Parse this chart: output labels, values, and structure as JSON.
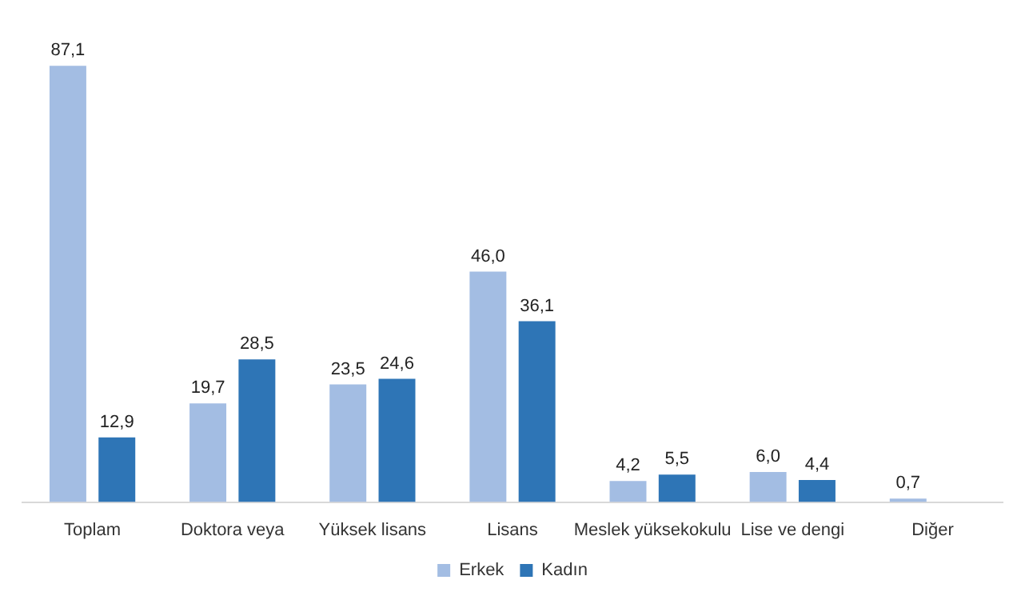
{
  "chart_data": {
    "type": "bar",
    "categories": [
      "Toplam",
      "Doktora veya",
      "Yüksek lisans",
      "Lisans",
      "Meslek yüksekokulu",
      "Lise ve dengi",
      "Diğer"
    ],
    "series": [
      {
        "name": "Erkek",
        "color": "#a3bde3",
        "values": [
          87.1,
          19.7,
          23.5,
          46.0,
          4.2,
          6.0,
          0.7
        ],
        "value_labels": [
          "87,1",
          "19,7",
          "23,5",
          "46,0",
          "4,2",
          "6,0",
          "0,7"
        ]
      },
      {
        "name": "Kadın",
        "color": "#2e75b6",
        "values": [
          12.9,
          28.5,
          24.6,
          36.1,
          5.5,
          4.4,
          null
        ],
        "value_labels": [
          "12,9",
          "28,5",
          "24,6",
          "36,1",
          "5,5",
          "4,4",
          null
        ]
      }
    ],
    "legend": "bottom",
    "grid": false
  }
}
